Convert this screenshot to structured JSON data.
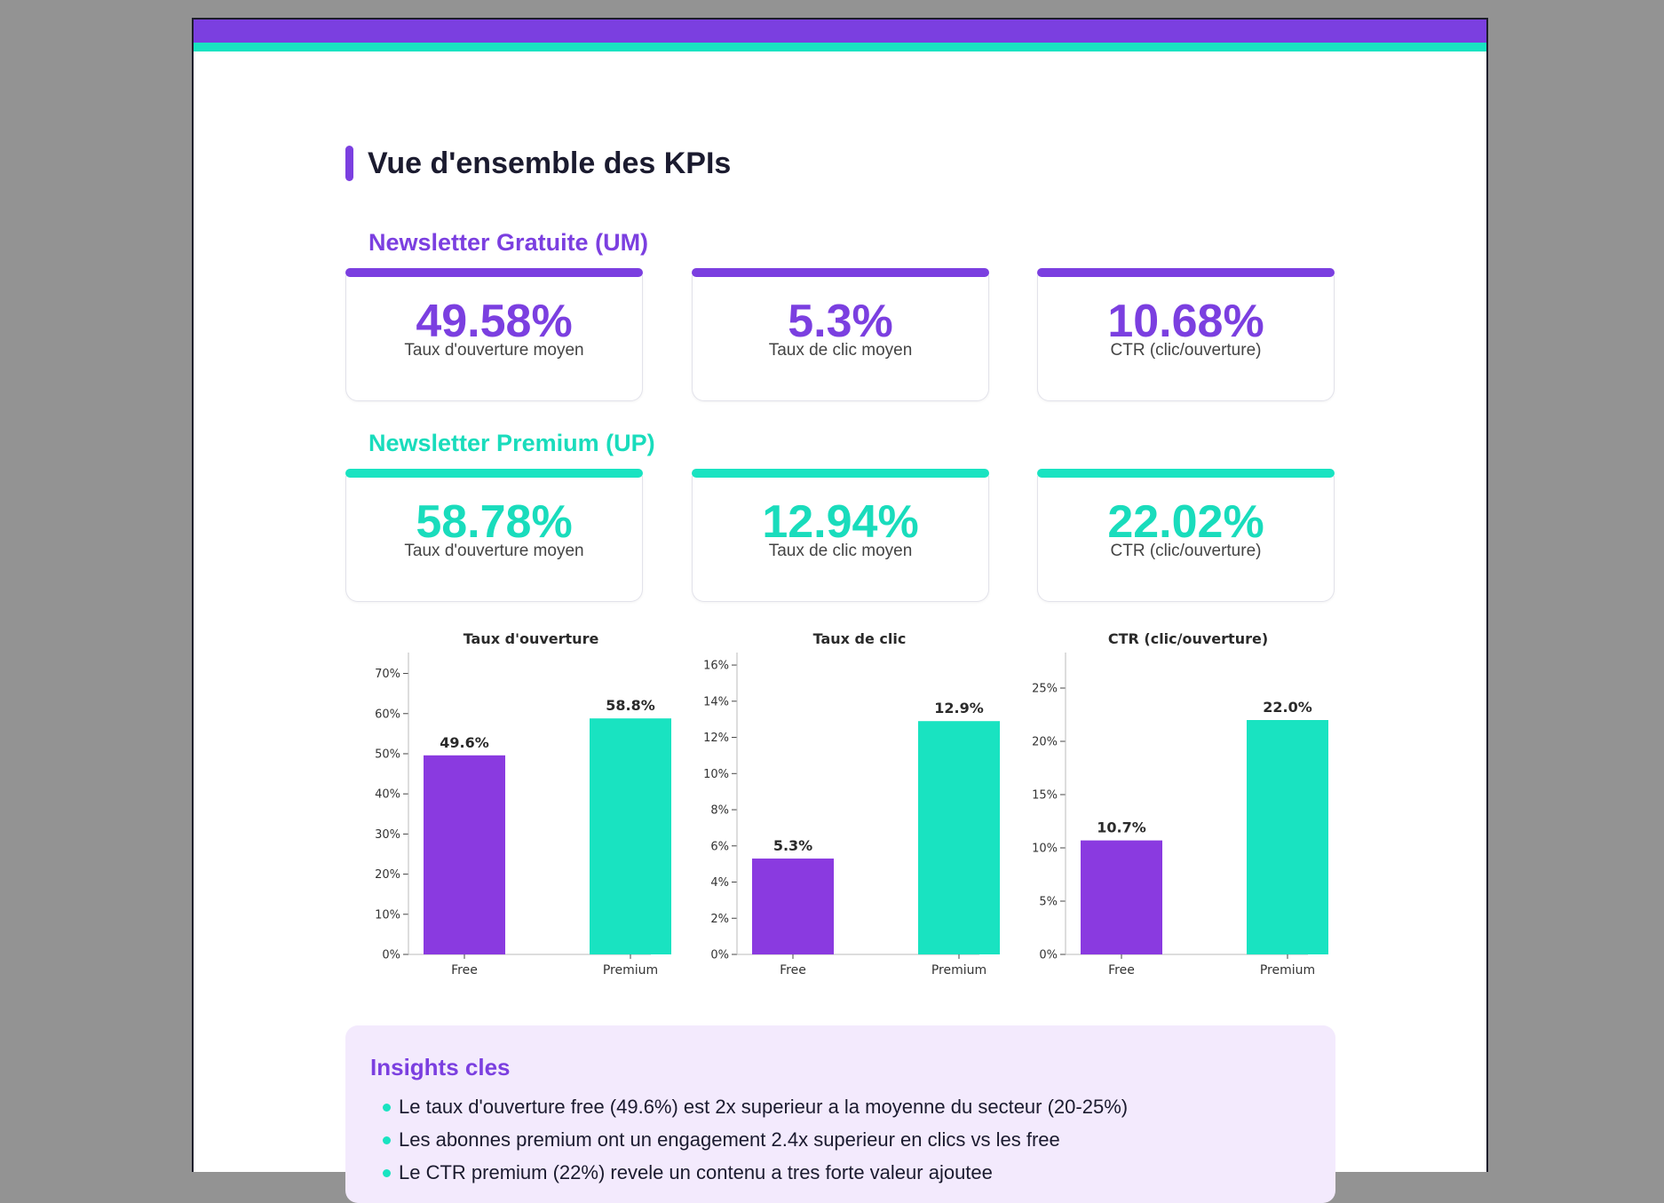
{
  "header": {
    "title": "Vue d'ensemble des KPIs"
  },
  "colors": {
    "free": "#8a3ae0",
    "premium": "#19e3c1"
  },
  "free": {
    "title": "Newsletter Gratuite (UM)",
    "kpis": [
      {
        "value": "49.58%",
        "label": "Taux d'ouverture moyen"
      },
      {
        "value": "5.3%",
        "label": "Taux de clic moyen"
      },
      {
        "value": "10.68%",
        "label": "CTR (clic/ouverture)"
      }
    ]
  },
  "premium": {
    "title": "Newsletter Premium (UP)",
    "kpis": [
      {
        "value": "58.78%",
        "label": "Taux d'ouverture moyen"
      },
      {
        "value": "12.94%",
        "label": "Taux de clic moyen"
      },
      {
        "value": "22.02%",
        "label": "CTR (clic/ouverture)"
      }
    ]
  },
  "chart_data": [
    {
      "type": "bar",
      "title": "Taux d'ouverture",
      "categories": [
        "Free",
        "Premium"
      ],
      "values": [
        49.6,
        58.8
      ],
      "data_labels": [
        "49.6%",
        "58.8%"
      ],
      "ylim": [
        0,
        73
      ],
      "yticks": [
        0,
        10,
        20,
        30,
        40,
        50,
        60,
        70
      ],
      "tick_labels": [
        "0%",
        "10%",
        "20%",
        "30%",
        "40%",
        "50%",
        "60%",
        "70%"
      ],
      "xlabel": "",
      "ylabel": ""
    },
    {
      "type": "bar",
      "title": "Taux de clic",
      "categories": [
        "Free",
        "Premium"
      ],
      "values": [
        5.3,
        12.9
      ],
      "data_labels": [
        "5.3%",
        "12.9%"
      ],
      "ylim": [
        0,
        16.2
      ],
      "yticks": [
        0,
        2,
        4,
        6,
        8,
        10,
        12,
        14,
        16
      ],
      "tick_labels": [
        "0%",
        "2%",
        "4%",
        "6%",
        "8%",
        "10%",
        "12%",
        "14%",
        "16%"
      ],
      "xlabel": "",
      "ylabel": ""
    },
    {
      "type": "bar",
      "title": "CTR (clic/ouverture)",
      "categories": [
        "Free",
        "Premium"
      ],
      "values": [
        10.7,
        22.0
      ],
      "data_labels": [
        "10.7%",
        "22.0%"
      ],
      "ylim": [
        0,
        27.5
      ],
      "yticks": [
        0,
        5,
        10,
        15,
        20,
        25
      ],
      "tick_labels": [
        "0%",
        "5%",
        "10%",
        "15%",
        "20%",
        "25%"
      ],
      "xlabel": "",
      "ylabel": ""
    }
  ],
  "insights": {
    "title": "Insights cles",
    "items": [
      "Le taux d'ouverture free (49.6%) est 2x superieur a la moyenne du secteur (20-25%)",
      "Les abonnes premium ont un engagement 2.4x superieur en clics vs les free",
      "Le CTR premium (22%) revele un contenu a tres forte valeur ajoutee"
    ]
  }
}
